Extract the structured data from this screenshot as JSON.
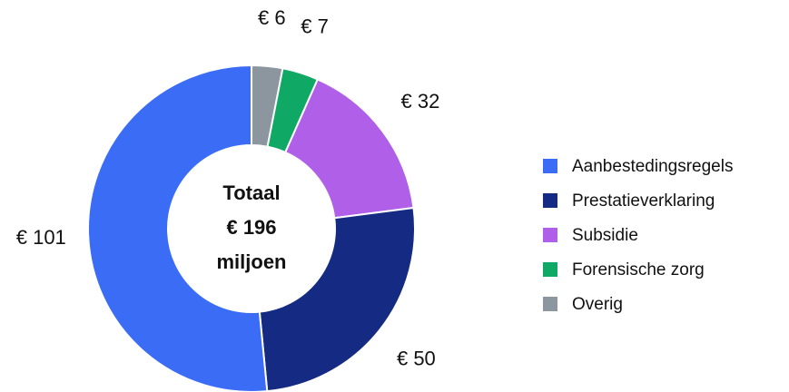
{
  "chart_data": {
    "type": "donut",
    "center_label": [
      "Totaal",
      "€ 196",
      "miljoen"
    ],
    "categories": [
      "Aanbestedingsregels",
      "Prestatieverklaring",
      "Subsidie",
      "Forensische zorg",
      "Overig"
    ],
    "values": [
      101,
      50,
      32,
      7,
      6
    ],
    "value_labels": [
      "€ 101",
      "€ 50",
      "€ 32",
      "€ 7",
      "€ 6"
    ],
    "colors": [
      "#3b6cf6",
      "#152a82",
      "#b05fe8",
      "#10a865",
      "#8c969e"
    ],
    "legend": "right"
  }
}
